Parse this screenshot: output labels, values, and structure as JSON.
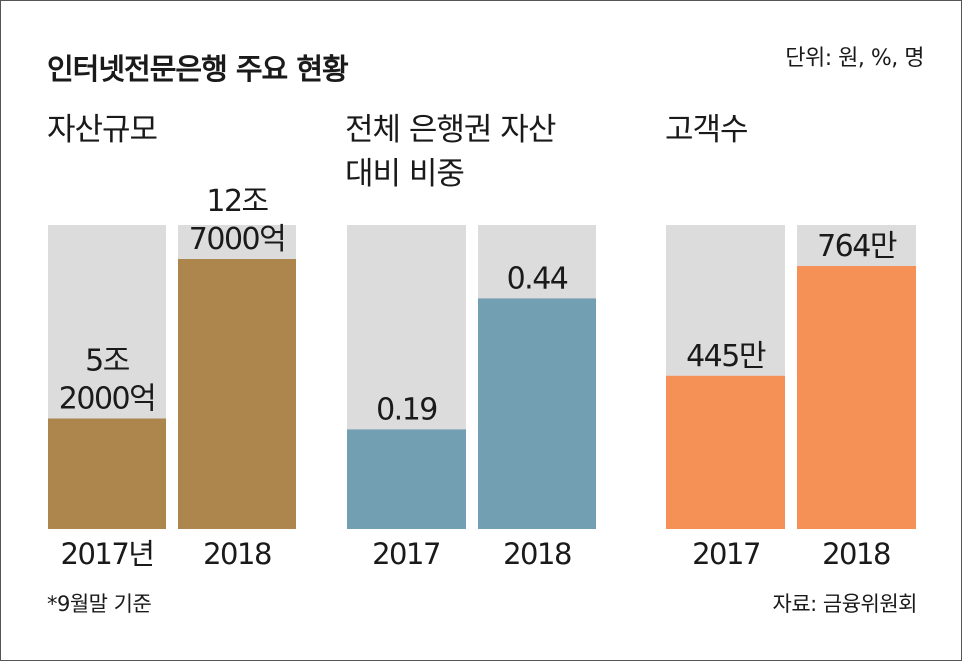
{
  "title": "인터넷전문은행 주요 현황",
  "unit_note": "단위: 원, %, 명",
  "footnote": "*9월말 기준",
  "source": "자료: 금융위원회",
  "colors": {
    "track": "#dcdcdd",
    "asset": "#ad864d",
    "share": "#739fb3",
    "customers": "#f59157"
  },
  "chart_data": [
    {
      "type": "bar",
      "title_lines": [
        "자산규모"
      ],
      "categories": [
        "2017년",
        "2018"
      ],
      "values": [
        5.2,
        12.7
      ],
      "value_labels": [
        [
          "5조",
          "2000억"
        ],
        [
          "12조",
          "7000억"
        ]
      ],
      "unit": "조 원",
      "ylim": [
        0,
        14.3
      ],
      "grid": false,
      "color": "#ad864d"
    },
    {
      "type": "bar",
      "title_lines": [
        "전체 은행권 자산",
        "대비 비중"
      ],
      "categories": [
        "2017",
        "2018"
      ],
      "values": [
        0.19,
        0.44
      ],
      "value_labels": [
        [
          "0.19"
        ],
        [
          "0.44"
        ]
      ],
      "unit": "%",
      "ylim": [
        0,
        0.58
      ],
      "grid": false,
      "color": "#739fb3"
    },
    {
      "type": "bar",
      "title_lines": [
        "고객수"
      ],
      "categories": [
        "2017",
        "2018"
      ],
      "values": [
        445,
        764
      ],
      "value_labels": [
        [
          "445만"
        ],
        [
          "764만"
        ]
      ],
      "unit": "만 명",
      "ylim": [
        0,
        883
      ],
      "grid": false,
      "color": "#f59157"
    }
  ]
}
